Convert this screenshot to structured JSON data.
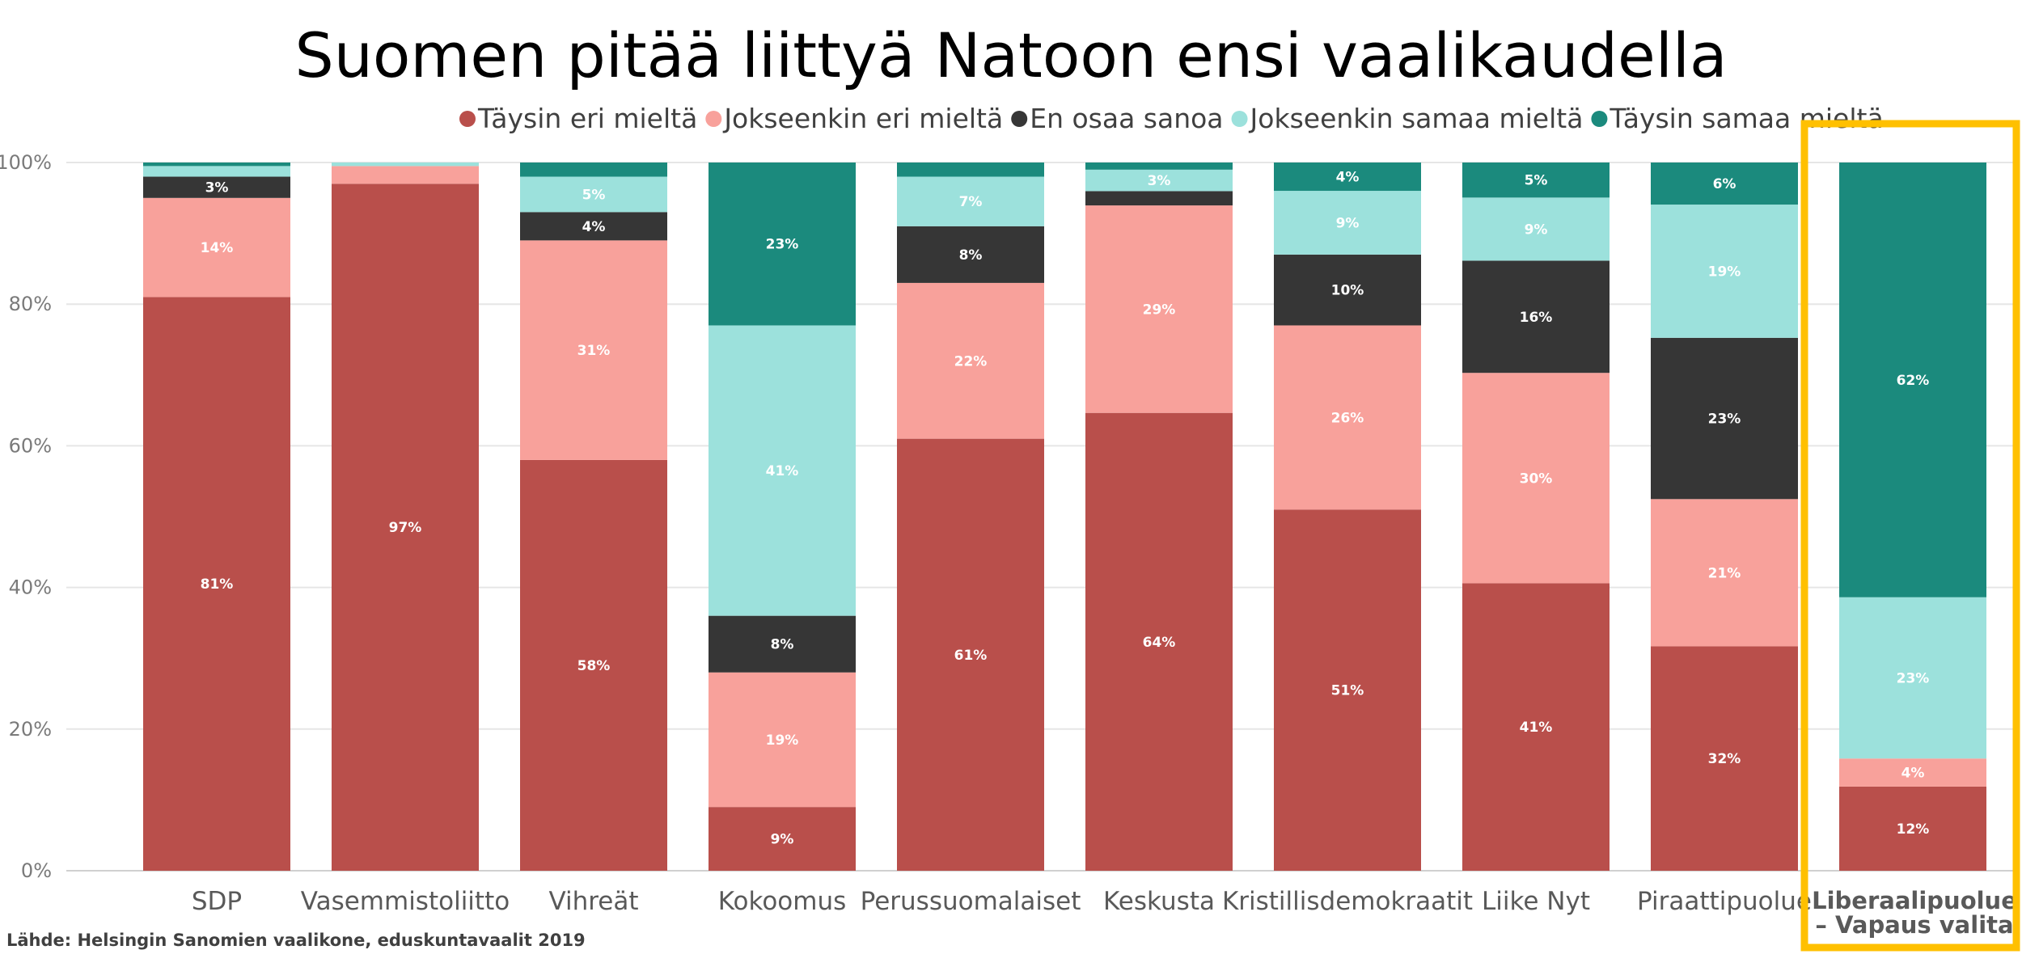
{
  "chart_data": {
    "type": "bar",
    "stacked": true,
    "title": "Suomen pitää liittyä Natoon ensi vaalikaudella",
    "source": "Lähde: Helsingin Sanomien vaalikone, eduskuntavaalit 2019",
    "xlabel": "",
    "ylabel": "",
    "ylim": [
      0,
      100
    ],
    "ytick_labels": [
      "0%",
      "20%",
      "40%",
      "60%",
      "80%",
      "100%"
    ],
    "grid": true,
    "legend_position": "top",
    "categories": [
      "SDP",
      "Vasemmistoliitto",
      "Vihreät",
      "Kokoomus",
      "Perussuomalaiset",
      "Keskusta",
      "Kristillisdemokraatit",
      "Liike Nyt",
      "Piraattipuolue",
      "Liberaalipuolue – Vapaus valita"
    ],
    "highlighted_category": {
      "index": 9,
      "label_lines": [
        "Liberaalipuolue",
        "– Vapaus valita"
      ],
      "box_color": "#FFC000"
    },
    "series": [
      {
        "name": "Täysin eri mieltä",
        "color": "#B94F4B",
        "label_color": "#ffffff",
        "values": [
          81,
          97,
          58,
          9,
          61,
          64,
          51,
          41,
          32,
          12
        ],
        "labels": [
          "81%",
          "97%",
          "58%",
          "9%",
          "61%",
          "64%",
          "51%",
          "41%",
          "32%",
          "12%"
        ]
      },
      {
        "name": "Jokseenkin eri mieltä",
        "color": "#F8A19B",
        "label_color": "#ffffff",
        "values": [
          14,
          2.5,
          31,
          19,
          22,
          29,
          26,
          30,
          21,
          4
        ],
        "labels": [
          "14%",
          "",
          "31%",
          "19%",
          "22%",
          "29%",
          "26%",
          "30%",
          "21%",
          "4%"
        ]
      },
      {
        "name": "En osaa sanoa",
        "color": "#363636",
        "label_color": "#ffffff",
        "values": [
          3,
          0,
          4,
          8,
          8,
          2,
          10,
          16,
          23,
          0
        ],
        "labels": [
          "3%",
          "",
          "4%",
          "8%",
          "8%",
          "",
          "10%",
          "16%",
          "23%",
          ""
        ]
      },
      {
        "name": "Jokseenkin samaa mieltä",
        "color": "#9CE1DC",
        "label_color": "#ffffff",
        "values": [
          1.5,
          0.5,
          5,
          41,
          7,
          3,
          9,
          9,
          19,
          23
        ],
        "labels": [
          "",
          "",
          "5%",
          "41%",
          "7%",
          "3%",
          "9%",
          "9%",
          "19%",
          "23%"
        ]
      },
      {
        "name": "Täysin samaa mieltä",
        "color": "#1B8A7D",
        "label_color": "#ffffff",
        "values": [
          0.5,
          0,
          2,
          23,
          2,
          1,
          4,
          5,
          6,
          62
        ],
        "labels": [
          "",
          "",
          "",
          "23%",
          "",
          "",
          "4%",
          "5%",
          "6%",
          "62%"
        ]
      }
    ]
  }
}
